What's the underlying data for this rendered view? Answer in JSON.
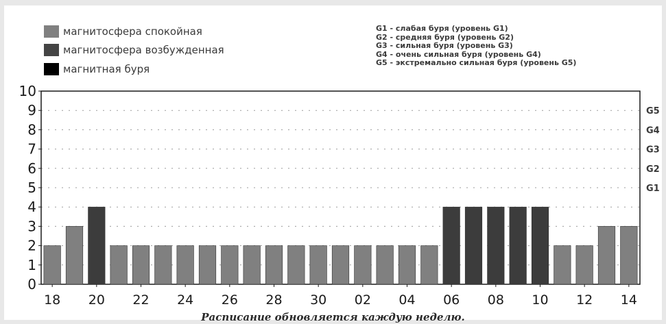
{
  "legend": [
    {
      "label": "магнитосфера спокойная",
      "color": "#808080"
    },
    {
      "label": "магнитосфера возбужденная",
      "color": "#444444"
    },
    {
      "label": "магнитная буря",
      "color": "#000000"
    }
  ],
  "storm_levels": [
    "G1 - слабая буря (уровень G1)",
    "G2 - средняя буря (уровень G2)",
    "G3 - сильная буря (уровень G3)",
    "G4 - очень сильная буря (уровень G4)",
    "G5 - экстремально сильная буря (уровень G5)"
  ],
  "caption": "Расписание обновляется каждую неделю.",
  "chart_data": {
    "type": "bar",
    "title": "",
    "xlabel": "",
    "ylabel": "",
    "ylim": [
      0,
      10
    ],
    "y_ticks": [
      "0",
      "1",
      "2",
      "3",
      "4",
      "5",
      "6",
      "7",
      "8",
      "9",
      "10"
    ],
    "x_tick_labels": [
      "18",
      "20",
      "22",
      "24",
      "26",
      "28",
      "30",
      "02",
      "04",
      "06",
      "08",
      "10",
      "12",
      "14"
    ],
    "categories": [
      "18",
      "19",
      "20",
      "21",
      "22",
      "23",
      "24",
      "25",
      "26",
      "27",
      "28",
      "29",
      "30",
      "01",
      "02",
      "03",
      "04",
      "05",
      "06",
      "07",
      "08",
      "09",
      "10",
      "11",
      "12",
      "13",
      "14"
    ],
    "values": [
      2,
      3,
      4,
      2,
      2,
      2,
      2,
      2,
      2,
      2,
      2,
      2,
      2,
      2,
      2,
      2,
      2,
      2,
      4,
      4,
      4,
      4,
      4,
      2,
      2,
      3,
      3
    ],
    "bar_colors": [
      "#808080",
      "#808080",
      "#3c3c3c",
      "#808080",
      "#808080",
      "#808080",
      "#808080",
      "#808080",
      "#808080",
      "#808080",
      "#808080",
      "#808080",
      "#808080",
      "#808080",
      "#808080",
      "#808080",
      "#808080",
      "#808080",
      "#3c3c3c",
      "#3c3c3c",
      "#3c3c3c",
      "#3c3c3c",
      "#3c3c3c",
      "#808080",
      "#808080",
      "#808080",
      "#808080"
    ],
    "right_axis_labels": [
      {
        "label": "G5",
        "y": 9
      },
      {
        "label": "G4",
        "y": 8
      },
      {
        "label": "G3",
        "y": 7
      },
      {
        "label": "G2",
        "y": 6
      },
      {
        "label": "G1",
        "y": 5
      }
    ],
    "grid": true
  }
}
